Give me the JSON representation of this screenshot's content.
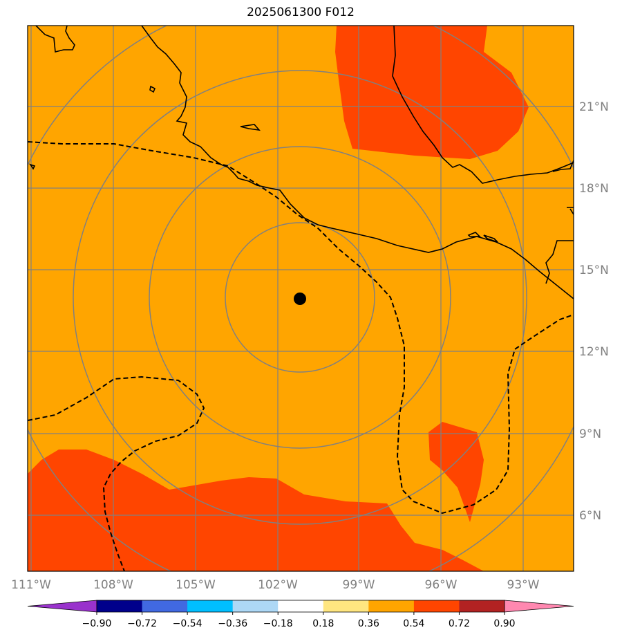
{
  "title": "2025061300 F012",
  "lon_labels": [
    "111°W",
    "108°W",
    "105°W",
    "102°W",
    "99°W",
    "96°W",
    "93°W"
  ],
  "lat_labels": [
    "21°N",
    "18°N",
    "15°N",
    "12°N",
    "9°N",
    "6°N"
  ],
  "colorbar": {
    "ticks": [
      "−0.90",
      "−0.72",
      "−0.54",
      "−0.36",
      "−0.18",
      "0.18",
      "0.36",
      "0.54",
      "0.72",
      "0.90"
    ],
    "colors": [
      "#9932CC",
      "#00008B",
      "#4169E1",
      "#00BFFF",
      "#ADD8F6",
      "#FFFFFF",
      "#FFE680",
      "#FFA500",
      "#FF4500",
      "#B22222",
      "#FF88B0"
    ]
  },
  "field": {
    "background_color": "#FFA500",
    "high_color": "#FF4500"
  },
  "center_marker": {
    "lon": -101.2,
    "lat": 14.0
  },
  "range_rings": 4,
  "contour_style": "dashed"
}
